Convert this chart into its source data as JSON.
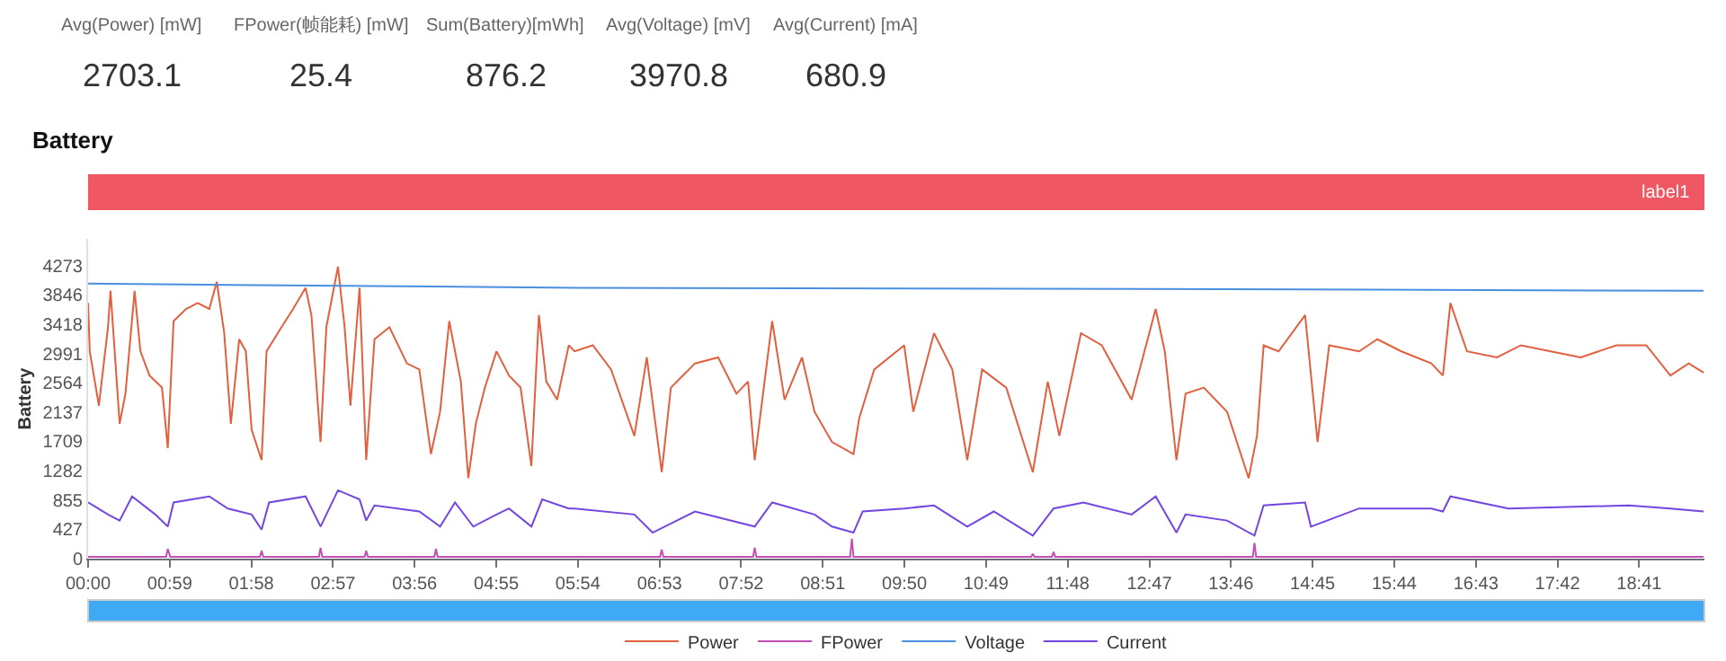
{
  "chart_data": {
    "type": "line",
    "title": "Battery",
    "ylabel": "Battery",
    "annotations": [
      "Avg(Power) [mW]",
      "2703.1",
      "FPower(帧能耗) [mW]",
      "25.4",
      "Sum(Battery)[mWh]",
      "876.2",
      "Avg(Voltage) [mV]",
      "3970.8",
      "Avg(Current) [mA]",
      "680.9",
      "label1"
    ],
    "xlim": [
      0,
      19.47
    ],
    "xticks": [
      {
        "value": 0,
        "label": "00:00"
      },
      {
        "value": 0.9833,
        "label": "00:59"
      },
      {
        "value": 1.9667,
        "label": "01:58"
      },
      {
        "value": 2.95,
        "label": "02:57"
      },
      {
        "value": 3.9333,
        "label": "03:56"
      },
      {
        "value": 4.9167,
        "label": "04:55"
      },
      {
        "value": 5.9,
        "label": "05:54"
      },
      {
        "value": 6.8833,
        "label": "06:53"
      },
      {
        "value": 7.8667,
        "label": "07:52"
      },
      {
        "value": 8.85,
        "label": "08:51"
      },
      {
        "value": 9.8333,
        "label": "09:50"
      },
      {
        "value": 10.8167,
        "label": "10:49"
      },
      {
        "value": 11.8,
        "label": "11:48"
      },
      {
        "value": 12.7833,
        "label": "12:47"
      },
      {
        "value": 13.7667,
        "label": "13:46"
      },
      {
        "value": 14.75,
        "label": "14:45"
      },
      {
        "value": 15.7333,
        "label": "15:44"
      },
      {
        "value": 16.7167,
        "label": "16:43"
      },
      {
        "value": 17.7,
        "label": "17:42"
      },
      {
        "value": 18.6833,
        "label": "18:41"
      }
    ],
    "ylim": [
      0,
      4660
    ],
    "yticks": [
      0,
      427,
      855,
      1282,
      1709,
      2137,
      2564,
      2991,
      3418,
      3846,
      4273
    ],
    "legend": "bottom",
    "marker": "none",
    "line_style": "solid",
    "series": [
      {
        "name": "Power",
        "color": "#e0603f",
        "x": [
          0,
          0.02,
          0.13,
          0.24,
          0.27,
          0.38,
          0.45,
          0.56,
          0.63,
          0.74,
          0.89,
          0.96,
          1.03,
          1.18,
          1.32,
          1.46,
          1.55,
          1.64,
          1.72,
          1.82,
          1.9,
          1.97,
          2.09,
          2.15,
          2.33,
          2.47,
          2.62,
          2.69,
          2.8,
          2.87,
          3.01,
          3.09,
          3.16,
          3.27,
          3.35,
          3.45,
          3.63,
          3.84,
          3.99,
          4.13,
          4.24,
          4.35,
          4.49,
          4.58,
          4.67,
          4.78,
          4.92,
          5.07,
          5.21,
          5.34,
          5.43,
          5.52,
          5.65,
          5.79,
          5.86,
          6.08,
          6.3,
          6.58,
          6.73,
          6.91,
          7.02,
          7.31,
          7.59,
          7.81,
          7.95,
          8.03,
          8.24,
          8.39,
          8.6,
          8.75,
          8.96,
          9.22,
          9.29,
          9.47,
          9.83,
          9.94,
          10.19,
          10.41,
          10.59,
          10.77,
          11.06,
          11.38,
          11.56,
          11.7,
          11.96,
          12.21,
          12.57,
          12.86,
          12.97,
          13.11,
          13.22,
          13.44,
          13.72,
          13.98,
          14.08,
          14.16,
          14.34,
          14.66,
          14.81,
          14.95,
          15.31,
          15.53,
          15.82,
          16.18,
          16.32,
          16.41,
          16.61,
          16.97,
          17.26,
          17.62,
          17.98,
          18.41,
          18.77,
          19.06,
          19.28,
          19.46
        ],
        "values": [
          3727,
          3022,
          2229,
          3374,
          3903,
          1965,
          2405,
          3903,
          3022,
          2669,
          2493,
          1612,
          3462,
          3639,
          3727,
          3639,
          4035,
          3286,
          1965,
          3198,
          3022,
          1877,
          1436,
          3022,
          3374,
          3639,
          3947,
          3550,
          1700,
          3374,
          4255,
          3374,
          2229,
          3947,
          1436,
          3198,
          3374,
          2846,
          2758,
          1524,
          2141,
          3462,
          2581,
          1172,
          1965,
          2493,
          3022,
          2669,
          2493,
          1348,
          3550,
          2581,
          2317,
          3110,
          3021,
          3109,
          2757,
          1789,
          2933,
          1260,
          2492,
          2845,
          2933,
          2404,
          2580,
          1436,
          3462,
          2316,
          2933,
          2141,
          1700,
          1524,
          2053,
          2757,
          3109,
          2141,
          3286,
          2757,
          1436,
          2757,
          2492,
          1260,
          2580,
          1789,
          3286,
          3109,
          2316,
          3638,
          3021,
          1436,
          2404,
          2492,
          2140,
          1171,
          1788,
          3109,
          3021,
          3550,
          1700,
          3109,
          3021,
          3197,
          3021,
          2845,
          2668,
          3726,
          3021,
          2933,
          3109,
          3021,
          2933,
          3109,
          3109,
          2668,
          2845,
          2712
        ]
      },
      {
        "name": "FPower",
        "color": "#c44fb4",
        "x": [
          0,
          0.94,
          0.96,
          0.99,
          2.07,
          2.09,
          2.11,
          2.78,
          2.8,
          2.82,
          3.33,
          3.35,
          3.37,
          4.17,
          4.19,
          4.21,
          6.89,
          6.91,
          6.93,
          8.01,
          8.03,
          8.05,
          9.18,
          9.2,
          9.22,
          11.36,
          11.38,
          11.4,
          11.61,
          11.63,
          11.65,
          14.03,
          14.05,
          14.07,
          19.46
        ],
        "values": [
          26,
          26,
          141,
          26,
          26,
          115,
          26,
          26,
          159,
          26,
          26,
          115,
          26,
          26,
          141,
          26,
          26,
          132,
          26,
          26,
          158,
          26,
          26,
          291,
          26,
          26,
          70,
          26,
          26,
          97,
          26,
          26,
          229,
          26,
          26
        ]
      },
      {
        "name": "Voltage",
        "color": "#4a8fe0",
        "x": [
          0,
          5.9,
          12.8,
          19.46
        ],
        "values": [
          4008,
          3947,
          3930,
          3903
        ]
      },
      {
        "name": "Current",
        "color": "#7446e0",
        "x": [
          0,
          0.24,
          0.38,
          0.53,
          0.81,
          0.96,
          1.03,
          1.46,
          1.68,
          1.97,
          2.09,
          2.18,
          2.62,
          2.8,
          3.01,
          3.27,
          3.35,
          3.45,
          3.99,
          4.24,
          4.42,
          4.64,
          4.92,
          5.07,
          5.34,
          5.47,
          5.79,
          5.86,
          6.58,
          6.8,
          7.31,
          8.03,
          8.24,
          8.75,
          8.96,
          9.22,
          9.33,
          9.83,
          10.19,
          10.59,
          10.91,
          11.38,
          11.63,
          11.99,
          12.57,
          12.86,
          13.11,
          13.22,
          13.72,
          14.05,
          14.16,
          14.66,
          14.73,
          15.31,
          16.18,
          16.32,
          16.41,
          17.11,
          18.56,
          19.06,
          19.46
        ],
        "values": [
          819,
          643,
          555,
          907,
          643,
          467,
          819,
          907,
          731,
          643,
          423,
          819,
          907,
          467,
          996,
          863,
          555,
          775,
          687,
          467,
          819,
          467,
          643,
          731,
          467,
          863,
          731,
          731,
          643,
          379,
          687,
          467,
          819,
          643,
          467,
          379,
          687,
          731,
          775,
          467,
          687,
          335,
          731,
          819,
          643,
          907,
          379,
          643,
          555,
          335,
          775,
          819,
          467,
          731,
          731,
          687,
          907,
          731,
          775,
          731,
          687
        ]
      }
    ]
  }
}
